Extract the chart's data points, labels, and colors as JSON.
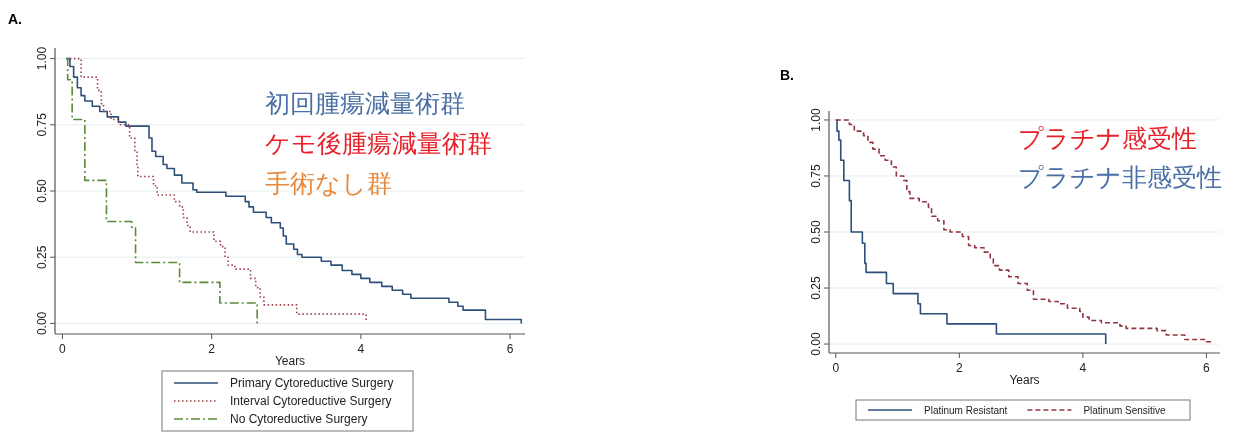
{
  "chart_data": [
    {
      "type": "step",
      "title": "A.",
      "xlabel": "Years",
      "xlim": [
        -0.1,
        6.2
      ],
      "ylim": [
        -0.04,
        1.04
      ],
      "xticks": [
        0,
        2,
        4,
        6
      ],
      "yticks": [
        {
          "value": 0,
          "label": "0.00"
        },
        {
          "value": 0.25,
          "label": "0.25"
        },
        {
          "value": 0.5,
          "label": "0.50"
        },
        {
          "value": 0.75,
          "label": "0.75"
        },
        {
          "value": 1,
          "label": "1.00"
        }
      ],
      "grid": "y",
      "legend": "bottom",
      "annotations": [
        "初回腫瘍減量術群",
        "ケモ後腫瘍減量術群",
        "手術なし群"
      ],
      "series": [
        {
          "name": "Primary Cytoreductive Surgery",
          "color": "#2e4f7a",
          "line_style": "solid",
          "x": [
            0.05,
            0.1,
            0.15,
            0.2,
            0.25,
            0.3,
            0.4,
            0.5,
            0.6,
            0.75,
            0.85,
            0.9,
            1.16,
            1.2,
            1.25,
            1.35,
            1.4,
            1.5,
            1.6,
            1.75,
            1.8,
            1.9,
            2.19,
            2.45,
            2.5,
            2.56,
            2.73,
            2.8,
            2.92,
            2.96,
            3.0,
            3.1,
            3.15,
            3.21,
            3.47,
            3.6,
            3.75,
            3.88,
            4.0,
            4.12,
            4.28,
            4.42,
            4.56,
            4.67,
            5.18,
            5.3,
            5.37,
            5.67,
            6.15
          ],
          "values": [
            1,
            0.97,
            0.93,
            0.89,
            0.86,
            0.84,
            0.82,
            0.8,
            0.78,
            0.76,
            0.745,
            0.745,
            0.7,
            0.65,
            0.63,
            0.6,
            0.585,
            0.56,
            0.53,
            0.505,
            0.495,
            0.495,
            0.48,
            0.46,
            0.44,
            0.42,
            0.4,
            0.38,
            0.36,
            0.33,
            0.3,
            0.28,
            0.26,
            0.25,
            0.235,
            0.22,
            0.2,
            0.185,
            0.17,
            0.155,
            0.14,
            0.125,
            0.11,
            0.095,
            0.08,
            0.065,
            0.05,
            0.015,
            0
          ]
        },
        {
          "name": "Interval Cytoreductive Surgery",
          "color": "#a0404a",
          "line_style": "dotted",
          "x": [
            0.1,
            0.25,
            0.47,
            0.52,
            0.55,
            0.65,
            0.76,
            0.9,
            0.97,
            1.0,
            1.01,
            1.22,
            1.27,
            1.5,
            1.57,
            1.62,
            1.67,
            1.71,
            1.85,
            2.03,
            2.12,
            2.18,
            2.22,
            2.31,
            2.52,
            2.59,
            2.65,
            2.7,
            3.14,
            4.07
          ],
          "values": [
            1,
            0.93,
            0.88,
            0.83,
            0.8,
            0.77,
            0.75,
            0.7,
            0.65,
            0.6,
            0.555,
            0.52,
            0.485,
            0.46,
            0.44,
            0.4,
            0.37,
            0.345,
            0.345,
            0.31,
            0.29,
            0.25,
            0.22,
            0.205,
            0.17,
            0.135,
            0.1,
            0.07,
            0.035,
            0.01
          ]
        },
        {
          "name": "No Cytoreductive Surgery",
          "color": "#5a8a3a",
          "line_style": "dashdot",
          "x": [
            0.05,
            0.07,
            0.13,
            0.3,
            0.59,
            0.93,
            0.98,
            1.57,
            2.11,
            2.61
          ],
          "values": [
            1,
            0.92,
            0.77,
            0.54,
            0.385,
            0.36,
            0.23,
            0.155,
            0.077,
            0
          ]
        }
      ]
    },
    {
      "type": "step",
      "title": "B.",
      "xlabel": "Years",
      "xlim": [
        -0.11,
        6.22
      ],
      "ylim": [
        -0.04,
        1.04
      ],
      "xticks": [
        0,
        2,
        4,
        6
      ],
      "yticks": [
        {
          "value": 0,
          "label": "0.00"
        },
        {
          "value": 0.25,
          "label": "0.25"
        },
        {
          "value": 0.5,
          "label": "0.50"
        },
        {
          "value": 0.75,
          "label": "0.75"
        },
        {
          "value": 1,
          "label": "1.00"
        }
      ],
      "grid": "y",
      "legend": "bottom",
      "annotations": [
        "プラチナ感受性",
        "プラチナ非感受性"
      ],
      "series": [
        {
          "name": "Platinum Resistant",
          "color": "#2d4e7a",
          "line_style": "solid",
          "x": [
            0,
            0.02,
            0.05,
            0.08,
            0.13,
            0.22,
            0.25,
            0.28,
            0.43,
            0.47,
            0.49,
            0.82,
            0.93,
            1.33,
            1.37,
            1.8,
            2.6,
            4.37
          ],
          "values": [
            1,
            0.95,
            0.91,
            0.82,
            0.73,
            0.64,
            0.5,
            0.5,
            0.45,
            0.36,
            0.32,
            0.27,
            0.225,
            0.18,
            0.135,
            0.09,
            0.045,
            0
          ]
        },
        {
          "name": "Platinum Sensitive",
          "color": "#93343f",
          "line_style": "dashed",
          "x": [
            0,
            0.22,
            0.3,
            0.45,
            0.52,
            0.6,
            0.7,
            0.8,
            0.9,
            0.98,
            1.1,
            1.15,
            1.2,
            1.35,
            1.5,
            1.55,
            1.65,
            1.75,
            1.85,
            2.05,
            2.15,
            2.25,
            2.4,
            2.5,
            2.55,
            2.65,
            2.8,
            2.95,
            3.1,
            3.2,
            3.45,
            3.6,
            3.75,
            3.95,
            4.0,
            4.1,
            4.3,
            4.6,
            4.7,
            5.2,
            5.35,
            5.65,
            6.0,
            6.1
          ],
          "values": [
            1,
            0.98,
            0.95,
            0.93,
            0.9,
            0.87,
            0.84,
            0.82,
            0.79,
            0.75,
            0.73,
            0.68,
            0.65,
            0.635,
            0.61,
            0.57,
            0.55,
            0.51,
            0.5,
            0.48,
            0.44,
            0.43,
            0.41,
            0.38,
            0.35,
            0.33,
            0.3,
            0.27,
            0.24,
            0.2,
            0.19,
            0.18,
            0.16,
            0.145,
            0.12,
            0.105,
            0.095,
            0.08,
            0.07,
            0.06,
            0.04,
            0.02,
            0.01,
            0.01
          ]
        }
      ]
    }
  ]
}
